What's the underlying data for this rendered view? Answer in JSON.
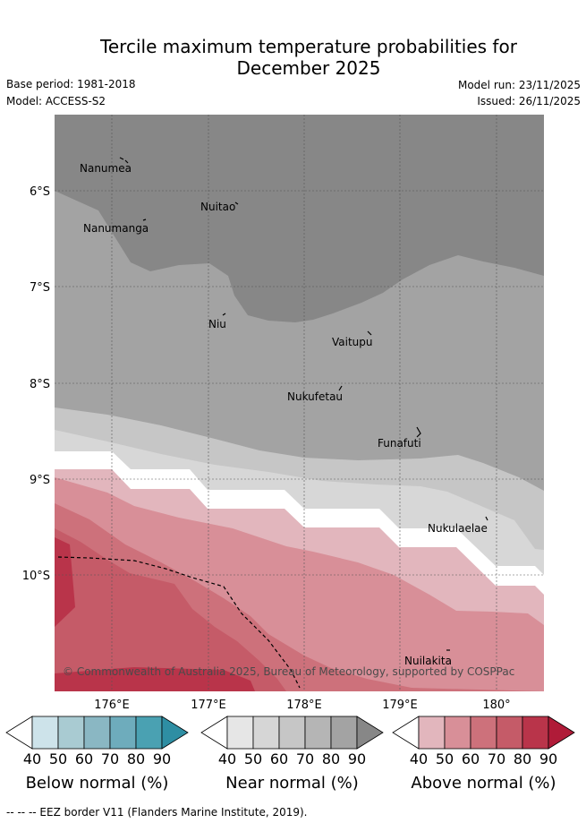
{
  "title_line1": "Tercile maximum temperature probabilities for",
  "title_line2": "December 2025",
  "meta": {
    "base_period": "Base period: 1981-2018",
    "model": "Model: ACCESS-S2",
    "model_run": "Model run: 23/11/2025",
    "issued": "Issued: 26/11/2025"
  },
  "map": {
    "lat_labels": [
      "6°S",
      "7°S",
      "8°S",
      "9°S",
      "10°S"
    ],
    "lon_labels": [
      "176°E",
      "177°E",
      "178°E",
      "179°E",
      "180°"
    ],
    "places": [
      "Nanumea",
      "Nuitao",
      "Nanumanga",
      "Niu",
      "Vaitupu",
      "Nukufetau",
      "Funafuti",
      "Nukulaelae",
      "Nuilakita"
    ],
    "copyright": "© Commonwealth of Australia 2025, Bureau of Meteorology, supported by COSPPac"
  },
  "legends": [
    {
      "caption": "Below normal (%)",
      "values": [
        "40",
        "50",
        "60",
        "70",
        "80",
        "90"
      ],
      "colors": [
        "#cde3ea",
        "#a9cbd2",
        "#8ab7c3",
        "#6eacbc",
        "#4aa1b2",
        "#2e8ea3"
      ]
    },
    {
      "caption": "Near normal (%)",
      "values": [
        "40",
        "50",
        "60",
        "70",
        "80",
        "90"
      ],
      "colors": [
        "#e6e6e6",
        "#d6d6d6",
        "#c6c6c6",
        "#b5b5b5",
        "#a3a3a3",
        "#878787"
      ]
    },
    {
      "caption": "Above normal (%)",
      "values": [
        "40",
        "50",
        "60",
        "70",
        "80",
        "90"
      ],
      "colors": [
        "#e2b6bd",
        "#d88f98",
        "#cd717b",
        "#c55b68",
        "#b9344a",
        "#b01b38"
      ]
    }
  ],
  "footer": "-- -- -- EEZ border V11 (Flanders Marine Institute, 2019)."
}
